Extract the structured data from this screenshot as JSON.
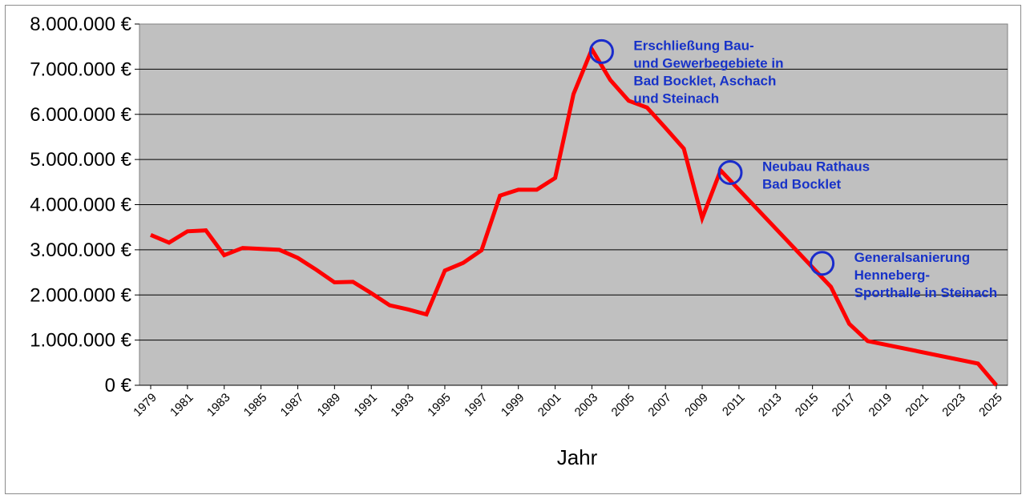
{
  "chart_data": {
    "type": "line",
    "title": "",
    "xlabel": "Jahr",
    "ylabel": "",
    "xlim": [
      1979,
      2025
    ],
    "ylim": [
      0,
      8000000
    ],
    "grid": true,
    "legend": "none",
    "y_ticks": [
      {
        "value": 0,
        "label": "0 €"
      },
      {
        "value": 1000000,
        "label": "1.000.000 €"
      },
      {
        "value": 2000000,
        "label": "2.000.000 €"
      },
      {
        "value": 3000000,
        "label": "3.000.000 €"
      },
      {
        "value": 4000000,
        "label": "4.000.000 €"
      },
      {
        "value": 5000000,
        "label": "5.000.000 €"
      },
      {
        "value": 6000000,
        "label": "6.000.000 €"
      },
      {
        "value": 7000000,
        "label": "7.000.000 €"
      },
      {
        "value": 8000000,
        "label": "8.000.000 €"
      }
    ],
    "x_ticks": [
      "1979",
      "1981",
      "1983",
      "1985",
      "1987",
      "1989",
      "1991",
      "1993",
      "1995",
      "1997",
      "1999",
      "2001",
      "2003",
      "2005",
      "2007",
      "2009",
      "2011",
      "2013",
      "2015",
      "2017",
      "2019",
      "2021",
      "2023",
      "2025"
    ],
    "series": [
      {
        "color": "#ff0000",
        "points": [
          [
            1979,
            3330000
          ],
          [
            1980,
            3160000
          ],
          [
            1981,
            3410000
          ],
          [
            1982,
            3430000
          ],
          [
            1983,
            2880000
          ],
          [
            1984,
            3040000
          ],
          [
            1985,
            3020000
          ],
          [
            1986,
            3000000
          ],
          [
            1987,
            2820000
          ],
          [
            1988,
            2560000
          ],
          [
            1989,
            2280000
          ],
          [
            1990,
            2290000
          ],
          [
            1991,
            2040000
          ],
          [
            1992,
            1770000
          ],
          [
            1993,
            1680000
          ],
          [
            1994,
            1570000
          ],
          [
            1995,
            2540000
          ],
          [
            1996,
            2710000
          ],
          [
            1997,
            2990000
          ],
          [
            1998,
            4200000
          ],
          [
            1999,
            4330000
          ],
          [
            2000,
            4330000
          ],
          [
            2001,
            4590000
          ],
          [
            2002,
            6450000
          ],
          [
            2003,
            7440000
          ],
          [
            2004,
            6760000
          ],
          [
            2005,
            6300000
          ],
          [
            2006,
            6150000
          ],
          [
            2007,
            5700000
          ],
          [
            2008,
            5240000
          ],
          [
            2009,
            3700000
          ],
          [
            2010,
            4760000
          ],
          [
            2016,
            2180000
          ],
          [
            2017,
            1360000
          ],
          [
            2018,
            980000
          ],
          [
            2024,
            480000
          ],
          [
            2025,
            0
          ]
        ]
      }
    ],
    "annotations": [
      {
        "x": 2003,
        "y": 7390000,
        "lines": [
          "Erschließung Bau-",
          "und Gewerbegebiete in",
          "Bad Bocklet, Aschach",
          "und Steinach"
        ]
      },
      {
        "x": 2010,
        "y": 4710000,
        "lines": [
          "Neubau Rathaus",
          "Bad Bocklet"
        ]
      },
      {
        "x": 2015,
        "y": 2700000,
        "lines": [
          "Generalsanierung",
          "Henneberg-",
          "Sporthalle in Steinach"
        ]
      }
    ],
    "colors": {
      "plot_background": "#c0c0c0",
      "gridline": "#000000",
      "annotation": "#1732c8",
      "marker_circle": "#1a2ccc"
    }
  }
}
